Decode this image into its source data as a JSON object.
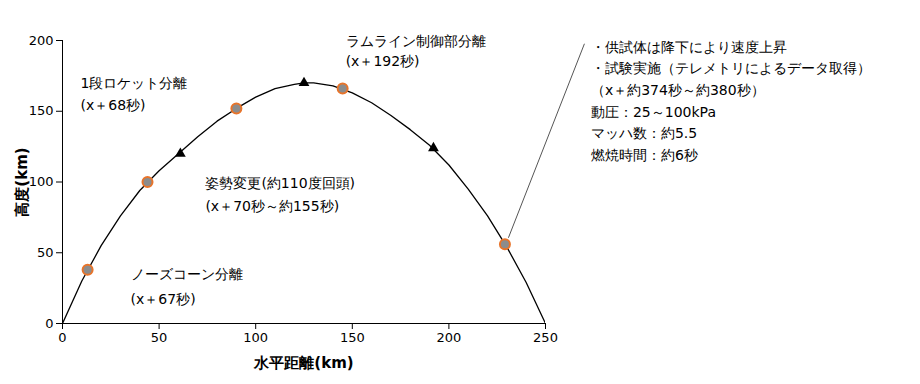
{
  "chart_data": {
    "type": "line",
    "xlabel": "水平距離(km)",
    "ylabel": "高度(km)",
    "x": [
      0,
      10,
      20,
      30,
      40,
      50,
      60,
      70,
      80,
      90,
      100,
      110,
      120,
      125,
      130,
      140,
      150,
      160,
      170,
      180,
      190,
      200,
      210,
      220,
      230,
      240,
      250
    ],
    "values": [
      0,
      30,
      55,
      76,
      94,
      108,
      120,
      132,
      143,
      152,
      160,
      166,
      169,
      170,
      170,
      168,
      163,
      156,
      147,
      137,
      126,
      112,
      95,
      76,
      54,
      29,
      0
    ],
    "color": "#000000",
    "xlim": [
      0,
      250
    ],
    "xticks": [
      0,
      50,
      100,
      150,
      200,
      250
    ],
    "ylim": [
      0,
      200
    ],
    "yticks": [
      0,
      50,
      100,
      150,
      200
    ],
    "grid": false,
    "events": {
      "marker": "triangle",
      "x": [
        61,
        125,
        192
      ],
      "y": [
        120,
        170,
        124
      ]
    },
    "annotations": [
      {
        "x": 13,
        "y": 38,
        "lines": [
          "ノーズコーン分離",
          "(x＋67秒)"
        ]
      },
      {
        "x": 44,
        "y": 100,
        "lines": [
          "1段ロケット分離",
          "(x＋68秒)"
        ]
      },
      {
        "x": 90,
        "y": 152,
        "lines": [
          "姿勢変更(約110度回頭)",
          "(x＋70秒～約155秒)"
        ]
      },
      {
        "x": 145,
        "y": 166,
        "lines": [
          "ラムライン制御部分離",
          "(x＋192秒)"
        ]
      },
      {
        "x": 229,
        "y": 56,
        "lines": [
          "・供試体は降下により速度上昇",
          "・試験実施（テレメトリによるデータ取得）",
          "（x＋約374秒～約380秒）",
          "動圧：25～100kPa",
          "マッハ数：約5.5",
          "燃焼時間：約6秒"
        ]
      }
    ]
  }
}
